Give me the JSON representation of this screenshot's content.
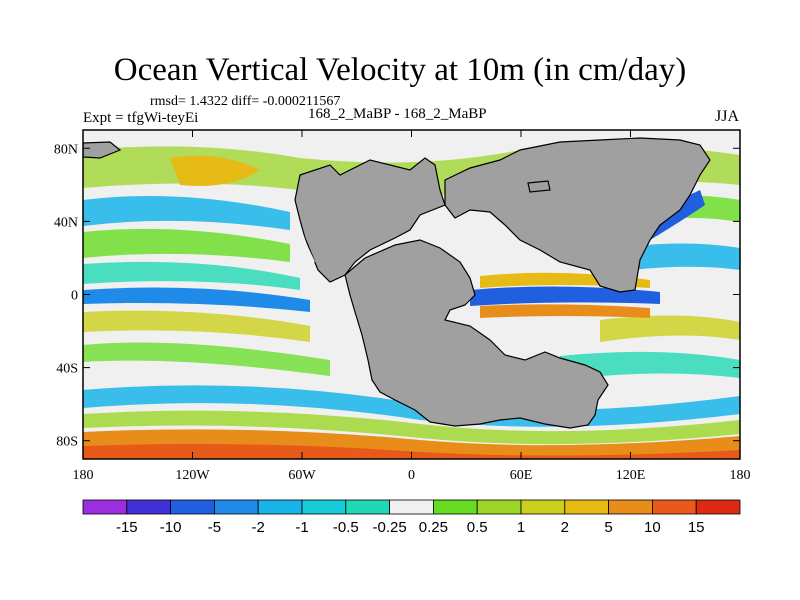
{
  "chart_data": {
    "type": "heatmap",
    "title": "Ocean Vertical Velocity at 10m (in cm/day)",
    "stats_line": "rmsd= 1.4322 diff= -0.000211567",
    "experiment": "Expt = tfgWi-teyEi",
    "difference_label": "168_2_MaBP - 168_2_MaBP",
    "season": "JJA",
    "x_ticks": [
      "180",
      "120W",
      "60W",
      "0",
      "60E",
      "120E",
      "180"
    ],
    "x_tick_values": [
      -180,
      -120,
      -60,
      0,
      60,
      120,
      180
    ],
    "y_ticks": [
      "80N",
      "40N",
      "0",
      "40S",
      "80S"
    ],
    "y_tick_values": [
      80,
      40,
      0,
      -40,
      -80
    ],
    "xlim": [
      -180,
      180
    ],
    "ylim": [
      -90,
      90
    ],
    "colorbar": {
      "labels": [
        "-15",
        "-10",
        "-5",
        "-2",
        "-1",
        "-0.5",
        "-0.25",
        "0.25",
        "0.5",
        "1",
        "2",
        "5",
        "10",
        "15"
      ],
      "colors": [
        "#9b2fe0",
        "#4030d8",
        "#1f5fe0",
        "#1f8ae8",
        "#19b4ea",
        "#19cad9",
        "#21d8b4",
        "#f0f0f0",
        "#66dd22",
        "#9cd627",
        "#cbcf1d",
        "#e6bb16",
        "#e88c1a",
        "#e85a1a",
        "#dd2a14"
      ]
    },
    "land_color": "#a0a0a0"
  }
}
